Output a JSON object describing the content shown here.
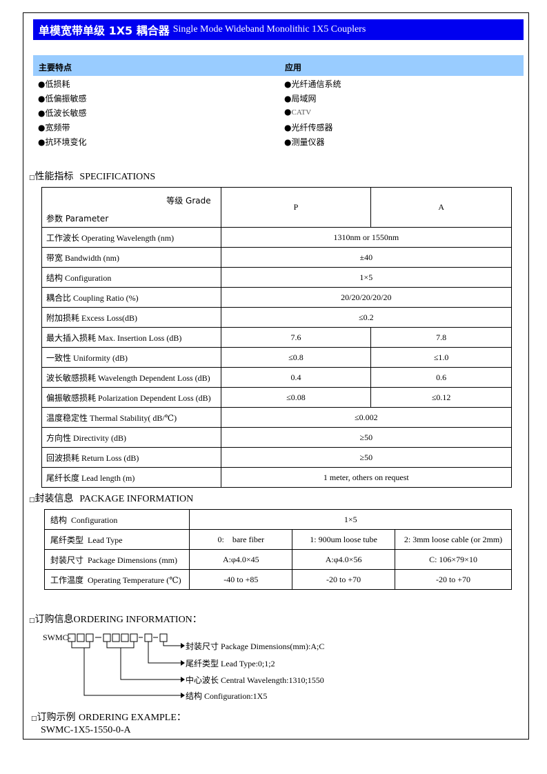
{
  "title": {
    "cn": "单模宽带单级 1X5 耦合器",
    "en": "Single Mode Wideband Monolithic 1X5 Couplers"
  },
  "features": {
    "heading": "主要特点",
    "items": [
      "低损耗",
      "低偏振敏感",
      "低波长敏感",
      "宽频带",
      "抗环境变化"
    ]
  },
  "applications": {
    "heading": "应用",
    "items": [
      "光纤通信系统",
      "局域网",
      "CATV",
      "光纤传感器",
      "测量仪器"
    ]
  },
  "bullet": "●",
  "specs": {
    "section_cn": "性能指标",
    "section_en": "SPECIFICATIONS",
    "grade_label": "等级  Grade",
    "param_label": "参数 Parameter",
    "grades": [
      "P",
      "A"
    ],
    "rows": [
      {
        "cn": "工作波长",
        "en": "Operating Wavelength (nm)",
        "values": [
          "1310nm or 1550nm"
        ]
      },
      {
        "cn": "带宽",
        "en": "Bandwidth (nm)",
        "values": [
          "±40"
        ]
      },
      {
        "cn": "结构",
        "en": "Configuration",
        "values": [
          "1×5"
        ]
      },
      {
        "cn": "耦合比",
        "en": "Coupling Ratio (%)",
        "values": [
          "20/20/20/20/20"
        ]
      },
      {
        "cn": "附加损耗",
        "en": "Excess Loss(dB)",
        "values": [
          "≤0.2"
        ]
      },
      {
        "cn": "最大插入损耗",
        "en": "Max. Insertion Loss (dB)",
        "values": [
          "7.6",
          "7.8"
        ]
      },
      {
        "cn": "一致性",
        "en": "Uniformity (dB)",
        "values": [
          "≤0.8",
          "≤1.0"
        ]
      },
      {
        "cn": "波长敏感损耗",
        "en": "Wavelength Dependent Loss (dB)",
        "values": [
          "0.4",
          "0.6"
        ]
      },
      {
        "cn": "偏振敏感损耗",
        "en": "Polarization Dependent Loss (dB)",
        "values": [
          "≤0.08",
          "≤0.12"
        ]
      },
      {
        "cn": "温度稳定性",
        "en": "Thermal Stability( dB/℃)",
        "values": [
          "≤0.002"
        ]
      },
      {
        "cn": "方向性",
        "en": "Directivity (dB)",
        "values": [
          "≥50"
        ]
      },
      {
        "cn": "回波损耗",
        "en": "Return Loss (dB)",
        "values": [
          "≥50"
        ]
      },
      {
        "cn": "尾纤长度",
        "en": "Lead length (m)",
        "values": [
          "1 meter, others on request"
        ]
      }
    ]
  },
  "package": {
    "section_cn": "封装信息",
    "section_en": "PACKAGE INFORMATION",
    "rows": [
      {
        "cn": "结构",
        "en": "Configuration",
        "values": [
          "1×5"
        ]
      },
      {
        "cn": "尾纤类型",
        "en": "Lead Type",
        "values": [
          "0:    bare fiber",
          "1: 900um loose tube",
          "2: 3mm loose cable (or 2mm)"
        ]
      },
      {
        "cn": "封装尺寸",
        "en": "Package Dimensions (mm)",
        "values": [
          "A:φ4.0×45",
          "A:φ4.0×56",
          "C: 106×79×10"
        ]
      },
      {
        "cn": "工作温度",
        "en": "Operating Temperature (℃)",
        "values": [
          "-40 to +85",
          "-20 to +70",
          "-20 to +70"
        ]
      }
    ]
  },
  "ordering": {
    "section_cn": "订购信息",
    "section_en": "ORDERING INFORMATION：",
    "prefix": "SWMC-",
    "labels": [
      {
        "cn": "封装尺寸",
        "en": "Package Dimensions(mm):A;C"
      },
      {
        "cn": "尾纤类型",
        "en": "Lead Type:0;1;2"
      },
      {
        "cn": "中心波长",
        "en": "Central Wavelength:1310;1550"
      },
      {
        "cn": "结构",
        "en": "Configuration:1X5"
      }
    ]
  },
  "example": {
    "section_cn": "订购示例",
    "section_en": "ORDERING EXAMPLE：",
    "value": "SWMC-1X5-1550-0-A"
  }
}
